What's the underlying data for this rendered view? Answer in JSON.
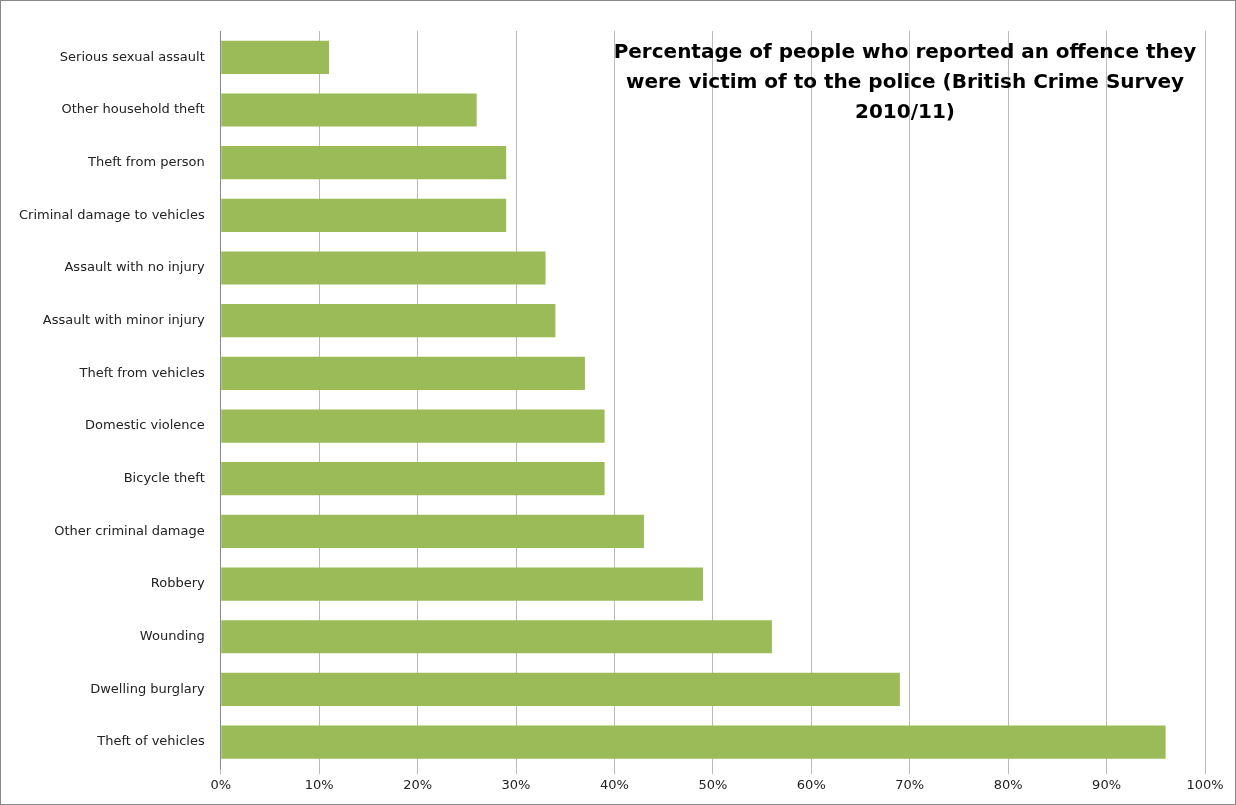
{
  "chart_data": {
    "type": "bar",
    "orientation": "horizontal",
    "title": "Percentage of people who reported an offence they were victim of to the police (British Crime Survey 2010/11)",
    "categories": [
      "Serious sexual assault",
      "Other household theft",
      "Theft from person",
      "Criminal damage to vehicles",
      "Assault with no injury",
      "Assault with minor injury",
      "Theft from vehicles",
      "Domestic violence",
      "Bicycle theft",
      "Other criminal damage",
      "Robbery",
      "Wounding",
      "Dwelling burglary",
      "Theft of vehicles"
    ],
    "values": [
      11,
      26,
      29,
      29,
      33,
      34,
      37,
      39,
      39,
      43,
      49,
      56,
      69,
      96
    ],
    "color": "#9bbb59",
    "xlim": [
      0,
      100
    ],
    "xticks": [
      {
        "value": 0,
        "label": "0%"
      },
      {
        "value": 10,
        "label": "10%"
      },
      {
        "value": 20,
        "label": "20%"
      },
      {
        "value": 30,
        "label": "30%"
      },
      {
        "value": 40,
        "label": "40%"
      },
      {
        "value": 50,
        "label": "50%"
      },
      {
        "value": 60,
        "label": "60%"
      },
      {
        "value": 70,
        "label": "70%"
      },
      {
        "value": 80,
        "label": "80%"
      },
      {
        "value": 90,
        "label": "90%"
      },
      {
        "value": 100,
        "label": "100%"
      }
    ],
    "grid": "x"
  }
}
